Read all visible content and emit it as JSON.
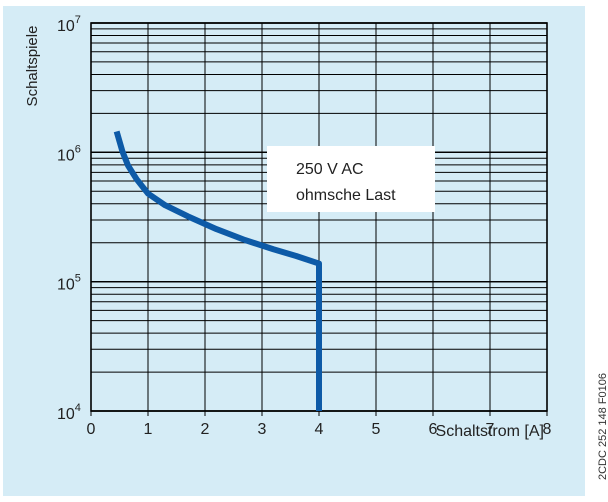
{
  "chart_data": {
    "type": "line",
    "ylabel": "Schaltspiele",
    "xlabel": "Schaltstrom [A]",
    "annotation": [
      "250 V AC",
      "ohmsche Last"
    ],
    "x_ticks": [
      "0",
      "1",
      "2",
      "3",
      "4",
      "5",
      "6",
      "7",
      "8"
    ],
    "y_ticks": [
      {
        "base": "10",
        "exp": "4",
        "value": 10000
      },
      {
        "base": "10",
        "exp": "5",
        "value": 100000
      },
      {
        "base": "10",
        "exp": "6",
        "value": 1000000
      },
      {
        "base": "10",
        "exp": "7",
        "value": 10000000
      }
    ],
    "xlim": [
      0,
      8
    ],
    "ylim": [
      10000,
      10000000
    ],
    "y_scale": "log",
    "grid": true,
    "series": [
      {
        "color": "#0d5aa7",
        "x": [
          0.45,
          0.55,
          0.65,
          0.8,
          1.0,
          1.3,
          1.7,
          2.2,
          2.7,
          3.2,
          3.6,
          4.0,
          4.0
        ],
        "y": [
          1450000,
          1020000,
          790000,
          620000,
          480000,
          390000,
          320000,
          255000,
          210000,
          178000,
          158000,
          138000,
          10000
        ]
      }
    ]
  },
  "source_code": "2CDC 252 148 F0106"
}
